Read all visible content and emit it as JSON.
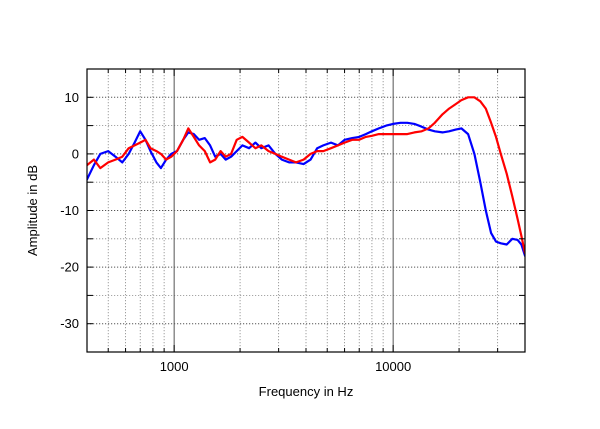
{
  "chart_data": {
    "type": "line",
    "xlabel": "Frequency in Hz",
    "ylabel": "Amplitude in dB",
    "xscale": "log",
    "xlim": [
      400,
      40000
    ],
    "ylim": [
      -35,
      15
    ],
    "x_ticks": [
      1000,
      10000
    ],
    "x_tick_labels": [
      "1000",
      "10000"
    ],
    "y_ticks": [
      10,
      0,
      -10,
      -20,
      -30
    ],
    "y_tick_labels": [
      "10",
      "0",
      "-10",
      "-20",
      "-30"
    ],
    "grid": true,
    "legend": "none",
    "series": [
      {
        "color": "#0000ff",
        "points": [
          [
            400,
            -4.5
          ],
          [
            430,
            -2.0
          ],
          [
            460,
            0.0
          ],
          [
            500,
            0.5
          ],
          [
            540,
            -0.5
          ],
          [
            580,
            -1.5
          ],
          [
            620,
            0.0
          ],
          [
            660,
            2.0
          ],
          [
            700,
            4.0
          ],
          [
            740,
            2.5
          ],
          [
            780,
            0.5
          ],
          [
            830,
            -1.5
          ],
          [
            870,
            -2.5
          ],
          [
            920,
            -1.0
          ],
          [
            970,
            0.0
          ],
          [
            1030,
            0.5
          ],
          [
            1100,
            2.5
          ],
          [
            1160,
            3.8
          ],
          [
            1230,
            3.5
          ],
          [
            1300,
            2.5
          ],
          [
            1380,
            2.8
          ],
          [
            1460,
            1.5
          ],
          [
            1540,
            -0.5
          ],
          [
            1630,
            0.0
          ],
          [
            1720,
            -1.0
          ],
          [
            1820,
            -0.5
          ],
          [
            1930,
            0.5
          ],
          [
            2050,
            1.5
          ],
          [
            2200,
            1.0
          ],
          [
            2350,
            2.0
          ],
          [
            2500,
            1.0
          ],
          [
            2700,
            1.5
          ],
          [
            2900,
            0.0
          ],
          [
            3100,
            -1.0
          ],
          [
            3350,
            -1.5
          ],
          [
            3600,
            -1.5
          ],
          [
            3900,
            -1.8
          ],
          [
            4200,
            -1.0
          ],
          [
            4500,
            1.0
          ],
          [
            4800,
            1.5
          ],
          [
            5200,
            2.0
          ],
          [
            5600,
            1.5
          ],
          [
            6000,
            2.5
          ],
          [
            6500,
            2.8
          ],
          [
            7000,
            3.0
          ],
          [
            7500,
            3.5
          ],
          [
            8000,
            4.0
          ],
          [
            8600,
            4.5
          ],
          [
            9300,
            5.0
          ],
          [
            10000,
            5.3
          ],
          [
            10800,
            5.5
          ],
          [
            11600,
            5.5
          ],
          [
            12500,
            5.3
          ],
          [
            13500,
            4.8
          ],
          [
            14500,
            4.3
          ],
          [
            15500,
            4.0
          ],
          [
            16800,
            3.8
          ],
          [
            18000,
            4.0
          ],
          [
            19300,
            4.3
          ],
          [
            20500,
            4.5
          ],
          [
            22000,
            3.5
          ],
          [
            23500,
            0.0
          ],
          [
            25000,
            -5.0
          ],
          [
            26500,
            -10.0
          ],
          [
            28000,
            -14.0
          ],
          [
            29500,
            -15.5
          ],
          [
            31000,
            -15.8
          ],
          [
            33000,
            -16.0
          ],
          [
            35000,
            -15.0
          ],
          [
            37000,
            -15.2
          ],
          [
            38500,
            -16.0
          ],
          [
            40000,
            -18.0
          ]
        ]
      },
      {
        "color": "#ff0000",
        "points": [
          [
            400,
            -2.0
          ],
          [
            430,
            -1.0
          ],
          [
            460,
            -2.5
          ],
          [
            500,
            -1.5
          ],
          [
            540,
            -1.0
          ],
          [
            580,
            -0.5
          ],
          [
            620,
            1.0
          ],
          [
            660,
            1.5
          ],
          [
            700,
            2.0
          ],
          [
            740,
            2.5
          ],
          [
            780,
            1.0
          ],
          [
            830,
            0.5
          ],
          [
            870,
            0.0
          ],
          [
            920,
            -1.0
          ],
          [
            970,
            -0.5
          ],
          [
            1030,
            0.5
          ],
          [
            1100,
            2.5
          ],
          [
            1160,
            4.5
          ],
          [
            1230,
            3.0
          ],
          [
            1300,
            1.5
          ],
          [
            1380,
            0.5
          ],
          [
            1460,
            -1.5
          ],
          [
            1540,
            -1.0
          ],
          [
            1630,
            0.5
          ],
          [
            1720,
            -0.5
          ],
          [
            1820,
            0.0
          ],
          [
            1930,
            2.5
          ],
          [
            2050,
            3.0
          ],
          [
            2200,
            2.0
          ],
          [
            2350,
            1.0
          ],
          [
            2500,
            1.5
          ],
          [
            2700,
            0.5
          ],
          [
            2900,
            0.0
          ],
          [
            3100,
            -0.5
          ],
          [
            3350,
            -1.0
          ],
          [
            3600,
            -1.5
          ],
          [
            3900,
            -1.0
          ],
          [
            4200,
            0.0
          ],
          [
            4500,
            0.5
          ],
          [
            4800,
            0.5
          ],
          [
            5200,
            1.0
          ],
          [
            5600,
            1.5
          ],
          [
            6000,
            2.0
          ],
          [
            6500,
            2.5
          ],
          [
            7000,
            2.5
          ],
          [
            7500,
            3.0
          ],
          [
            8000,
            3.2
          ],
          [
            8600,
            3.5
          ],
          [
            9300,
            3.5
          ],
          [
            10000,
            3.5
          ],
          [
            10800,
            3.5
          ],
          [
            11600,
            3.5
          ],
          [
            12500,
            3.8
          ],
          [
            13500,
            4.0
          ],
          [
            14500,
            4.5
          ],
          [
            15500,
            5.5
          ],
          [
            16800,
            7.0
          ],
          [
            18000,
            8.0
          ],
          [
            19300,
            8.8
          ],
          [
            20500,
            9.5
          ],
          [
            22000,
            10.0
          ],
          [
            23500,
            10.0
          ],
          [
            25000,
            9.3
          ],
          [
            26500,
            8.0
          ],
          [
            28000,
            5.5
          ],
          [
            29500,
            3.0
          ],
          [
            31000,
            0.0
          ],
          [
            33000,
            -3.5
          ],
          [
            35000,
            -7.5
          ],
          [
            37000,
            -11.5
          ],
          [
            38500,
            -14.5
          ],
          [
            40000,
            -17.5
          ]
        ]
      }
    ]
  }
}
